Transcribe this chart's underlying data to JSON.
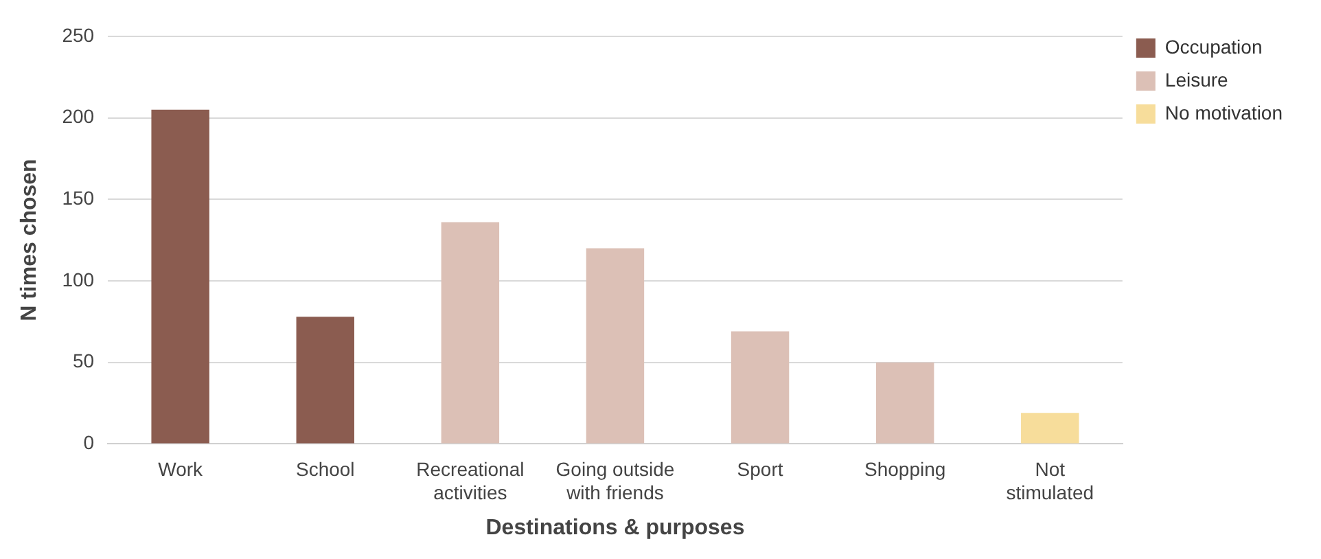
{
  "chart_data": {
    "type": "bar",
    "xlabel": "Destinations & purposes",
    "ylabel": "N times chosen",
    "categories": [
      "Work",
      "School",
      "Recreational activities",
      "Going outside with friends",
      "Sport",
      "Shopping",
      "Not stimulated"
    ],
    "series": [
      {
        "name": "Occupation",
        "color": "#8b5c50",
        "values": [
          205,
          78,
          null,
          null,
          null,
          null,
          null
        ]
      },
      {
        "name": "Leisure",
        "color": "#dcc0b6",
        "values": [
          null,
          null,
          136,
          120,
          69,
          50,
          null
        ]
      },
      {
        "name": "No motivation",
        "color": "#f7dd9b",
        "values": [
          null,
          null,
          null,
          null,
          null,
          null,
          19
        ]
      }
    ],
    "ylim": [
      0,
      250
    ],
    "yticks": [
      0,
      50,
      100,
      150,
      200,
      250
    ],
    "grid": "y",
    "legend": "top right"
  }
}
